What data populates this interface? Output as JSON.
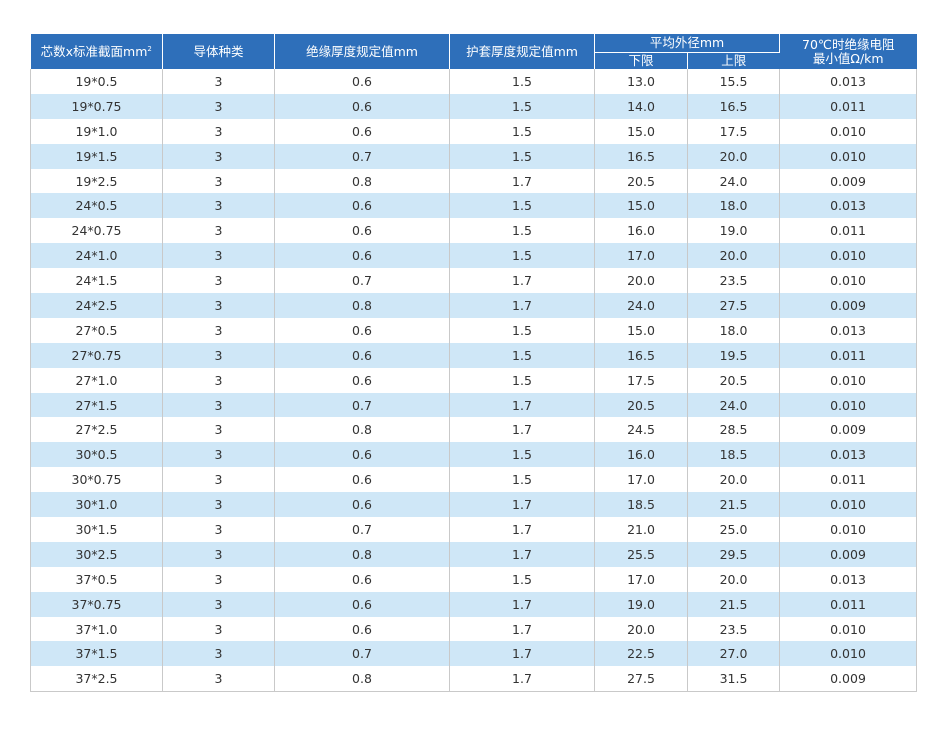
{
  "table": {
    "headers": {
      "cores_section": "芯数x标准截面mm",
      "cores_section_sup": "2",
      "conductor_type": "导体种类",
      "insulation_thickness": "绝缘厚度规定值mm",
      "sheath_thickness": "护套厚度规定值mm",
      "avg_outer_diameter": "平均外径mm",
      "lower_limit": "下限",
      "upper_limit": "上限",
      "resistance_line1": "70℃时绝缘电阻",
      "resistance_line2": "最小值Ω/km"
    },
    "rows": [
      [
        "19*0.5",
        "3",
        "0.6",
        "1.5",
        "13.0",
        "15.5",
        "0.013"
      ],
      [
        "19*0.75",
        "3",
        "0.6",
        "1.5",
        "14.0",
        "16.5",
        "0.011"
      ],
      [
        "19*1.0",
        "3",
        "0.6",
        "1.5",
        "15.0",
        "17.5",
        "0.010"
      ],
      [
        "19*1.5",
        "3",
        "0.7",
        "1.5",
        "16.5",
        "20.0",
        "0.010"
      ],
      [
        "19*2.5",
        "3",
        "0.8",
        "1.7",
        "20.5",
        "24.0",
        "0.009"
      ],
      [
        "24*0.5",
        "3",
        "0.6",
        "1.5",
        "15.0",
        "18.0",
        "0.013"
      ],
      [
        "24*0.75",
        "3",
        "0.6",
        "1.5",
        "16.0",
        "19.0",
        "0.011"
      ],
      [
        "24*1.0",
        "3",
        "0.6",
        "1.5",
        "17.0",
        "20.0",
        "0.010"
      ],
      [
        "24*1.5",
        "3",
        "0.7",
        "1.7",
        "20.0",
        "23.5",
        "0.010"
      ],
      [
        "24*2.5",
        "3",
        "0.8",
        "1.7",
        "24.0",
        "27.5",
        "0.009"
      ],
      [
        "27*0.5",
        "3",
        "0.6",
        "1.5",
        "15.0",
        "18.0",
        "0.013"
      ],
      [
        "27*0.75",
        "3",
        "0.6",
        "1.5",
        "16.5",
        "19.5",
        "0.011"
      ],
      [
        "27*1.0",
        "3",
        "0.6",
        "1.5",
        "17.5",
        "20.5",
        "0.010"
      ],
      [
        "27*1.5",
        "3",
        "0.7",
        "1.7",
        "20.5",
        "24.0",
        "0.010"
      ],
      [
        "27*2.5",
        "3",
        "0.8",
        "1.7",
        "24.5",
        "28.5",
        "0.009"
      ],
      [
        "30*0.5",
        "3",
        "0.6",
        "1.5",
        "16.0",
        "18.5",
        "0.013"
      ],
      [
        "30*0.75",
        "3",
        "0.6",
        "1.5",
        "17.0",
        "20.0",
        "0.011"
      ],
      [
        "30*1.0",
        "3",
        "0.6",
        "1.7",
        "18.5",
        "21.5",
        "0.010"
      ],
      [
        "30*1.5",
        "3",
        "0.7",
        "1.7",
        "21.0",
        "25.0",
        "0.010"
      ],
      [
        "30*2.5",
        "3",
        "0.8",
        "1.7",
        "25.5",
        "29.5",
        "0.009"
      ],
      [
        "37*0.5",
        "3",
        "0.6",
        "1.5",
        "17.0",
        "20.0",
        "0.013"
      ],
      [
        "37*0.75",
        "3",
        "0.6",
        "1.7",
        "19.0",
        "21.5",
        "0.011"
      ],
      [
        "37*1.0",
        "3",
        "0.6",
        "1.7",
        "20.0",
        "23.5",
        "0.010"
      ],
      [
        "37*1.5",
        "3",
        "0.7",
        "1.7",
        "22.5",
        "27.0",
        "0.010"
      ],
      [
        "37*2.5",
        "3",
        "0.8",
        "1.7",
        "27.5",
        "31.5",
        "0.009"
      ]
    ]
  },
  "colors": {
    "header_bg": "#2e6fba",
    "stripe_bg": "#cfe7f7",
    "text": "#333333",
    "grid": "#c9c9c9"
  }
}
